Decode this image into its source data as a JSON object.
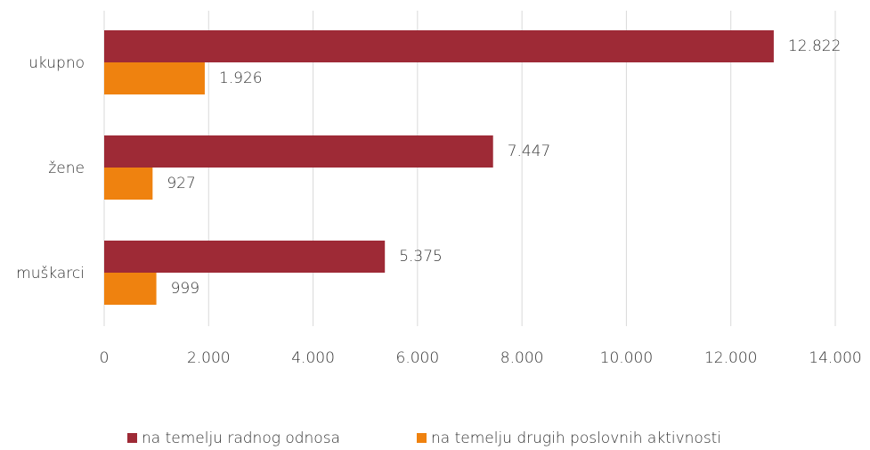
{
  "chart_data": {
    "type": "bar",
    "orientation": "horizontal",
    "categories": [
      "ukupno",
      "žene",
      "muškarci"
    ],
    "series": [
      {
        "name": "na temelju radnog odnosa",
        "color": "#9e2a36",
        "values": [
          12822,
          7447,
          5375
        ],
        "value_labels": [
          "12.822",
          "7.447",
          "5.375"
        ]
      },
      {
        "name": "na temelju drugih poslovnih aktivnosti",
        "color": "#ef820f",
        "values": [
          1926,
          927,
          999
        ],
        "value_labels": [
          "1.926",
          "927",
          "999"
        ]
      }
    ],
    "xlim": [
      0,
      14000
    ],
    "xticks": [
      0,
      {
        "value": 2000,
        "label": "2.000"
      },
      {
        "value": 4000,
        "label": "4.000"
      },
      {
        "value": 6000,
        "label": "6.000"
      },
      {
        "value": 8000,
        "label": "8.000"
      },
      {
        "value": 10000,
        "label": "10.000"
      },
      {
        "value": 12000,
        "label": "12.000"
      },
      {
        "value": 14000,
        "label": "14.000"
      }
    ],
    "grid": true,
    "legend": "bottom"
  }
}
